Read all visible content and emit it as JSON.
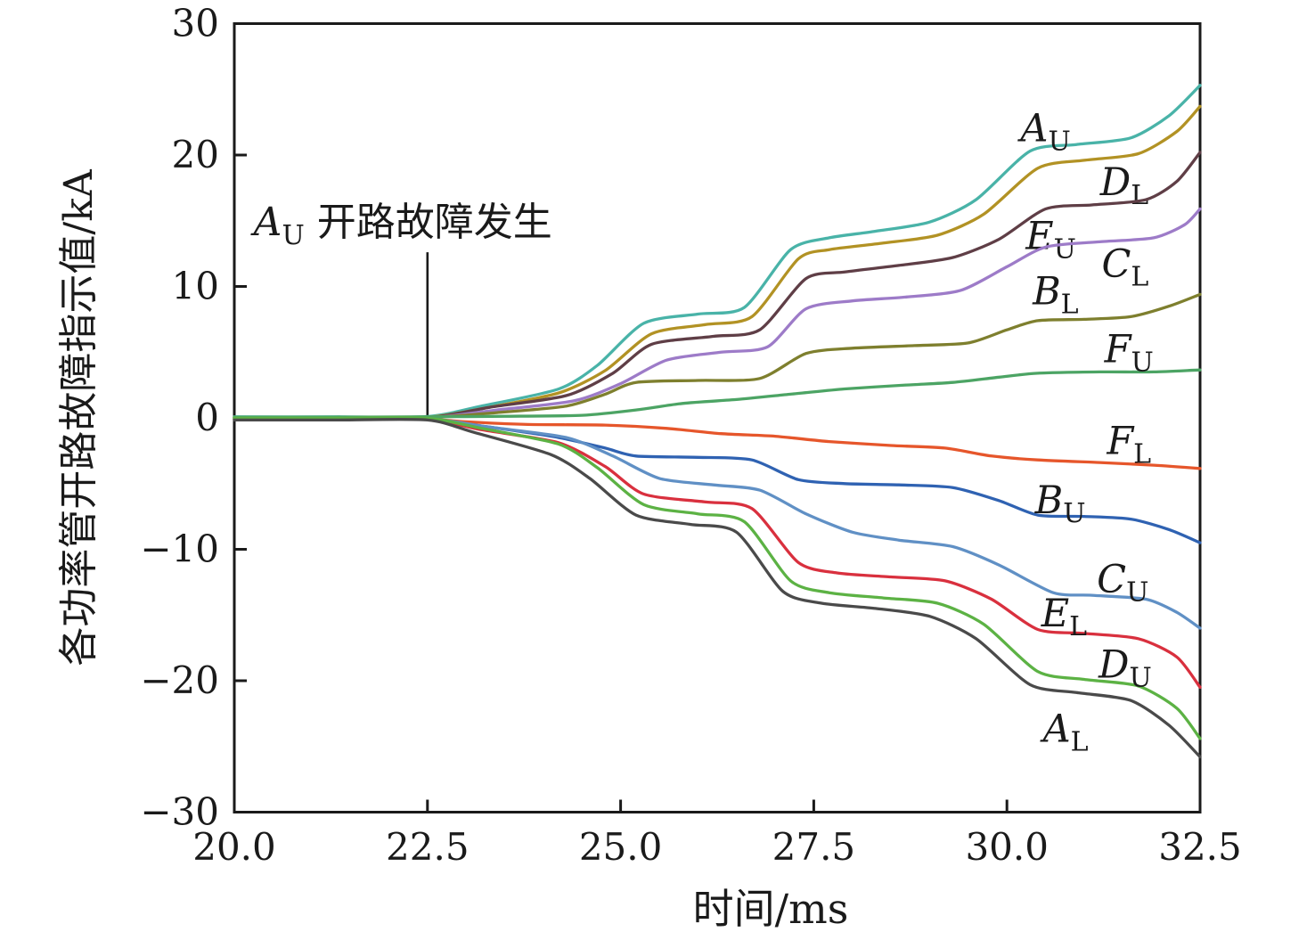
{
  "chart_data": {
    "type": "line",
    "title": "",
    "xlabel": "时间/ms",
    "ylabel": "各功率管开路故障指示值/kA",
    "xlim": [
      20.0,
      32.5
    ],
    "ylim": [
      -30,
      30
    ],
    "grid": false,
    "legend_position": "inline-labels",
    "frame": "box",
    "axis_color": "#1a1a1a",
    "text_color": "#1a1a1a",
    "xticks": {
      "values": [
        20.0,
        22.5,
        25.0,
        27.5,
        30.0,
        32.5
      ],
      "labels": [
        "20.0",
        "22.5",
        "25.0",
        "27.5",
        "30.0",
        "32.5"
      ]
    },
    "yticks": {
      "values": [
        30,
        20,
        10,
        0,
        -10,
        -20,
        -30
      ],
      "labels": [
        "30",
        "20",
        "10",
        "0",
        "−10",
        "−20",
        "−30"
      ]
    },
    "annotation": {
      "letter": "A",
      "letter_sub": "U",
      "rest": " 开路故障发生",
      "text_t": 20.25,
      "text_baseline_v": 13.9,
      "line_t": 22.5,
      "line_v_top": 12.6,
      "line_v_bottom": 0.05
    },
    "series": [
      {
        "name": "A_U",
        "letter": "A",
        "sub": "U",
        "color": "#49b3a8",
        "label_t": 30.5,
        "label_v": 22.0,
        "points": [
          [
            20,
            0.08
          ],
          [
            21.3,
            0.08
          ],
          [
            22.5,
            0.1
          ],
          [
            23.2,
            0.9
          ],
          [
            24.2,
            2.2
          ],
          [
            24.7,
            4.0
          ],
          [
            25.3,
            7.2
          ],
          [
            26.0,
            7.9
          ],
          [
            26.6,
            8.4
          ],
          [
            27.2,
            12.8
          ],
          [
            27.7,
            13.7
          ],
          [
            28.3,
            14.2
          ],
          [
            29.0,
            14.9
          ],
          [
            29.6,
            16.6
          ],
          [
            30.3,
            20.3
          ],
          [
            30.9,
            20.8
          ],
          [
            31.6,
            21.3
          ],
          [
            32.1,
            23.0
          ],
          [
            32.5,
            25.3
          ]
        ]
      },
      {
        "name": "D_L",
        "letter": "D",
        "sub": "L",
        "color": "#b29224",
        "label_t": 31.52,
        "label_v": 17.9,
        "points": [
          [
            20,
            0.04
          ],
          [
            21.3,
            0.04
          ],
          [
            22.5,
            0.05
          ],
          [
            23.2,
            0.7
          ],
          [
            24.2,
            1.9
          ],
          [
            24.8,
            3.6
          ],
          [
            25.4,
            6.4
          ],
          [
            26.1,
            7.1
          ],
          [
            26.7,
            7.7
          ],
          [
            27.3,
            12.1
          ],
          [
            27.7,
            12.8
          ],
          [
            28.4,
            13.3
          ],
          [
            29.1,
            13.9
          ],
          [
            29.7,
            15.5
          ],
          [
            30.4,
            19.0
          ],
          [
            31.0,
            19.6
          ],
          [
            31.7,
            20.1
          ],
          [
            32.2,
            21.8
          ],
          [
            32.5,
            23.7
          ]
        ]
      },
      {
        "name": "E_U",
        "letter": "E",
        "sub": "U",
        "color": "#5f3e46",
        "label_t": 30.57,
        "label_v": 13.8,
        "points": [
          [
            20,
            0.0
          ],
          [
            21.3,
            0.0
          ],
          [
            22.5,
            0.0
          ],
          [
            23.3,
            0.8
          ],
          [
            24.3,
            1.7
          ],
          [
            24.9,
            3.4
          ],
          [
            25.4,
            5.6
          ],
          [
            26.2,
            6.2
          ],
          [
            26.8,
            6.7
          ],
          [
            27.4,
            10.6
          ],
          [
            27.9,
            11.1
          ],
          [
            28.6,
            11.6
          ],
          [
            29.3,
            12.2
          ],
          [
            29.9,
            13.6
          ],
          [
            30.5,
            15.9
          ],
          [
            31.1,
            16.2
          ],
          [
            31.8,
            16.6
          ],
          [
            32.2,
            18.0
          ],
          [
            32.5,
            20.2
          ]
        ]
      },
      {
        "name": "C_L",
        "letter": "C",
        "sub": "L",
        "color": "#9d7bc8",
        "label_t": 31.53,
        "label_v": 11.7,
        "points": [
          [
            20,
            -0.04
          ],
          [
            21.3,
            -0.04
          ],
          [
            22.5,
            0.0
          ],
          [
            23.4,
            0.6
          ],
          [
            24.4,
            1.3
          ],
          [
            25.0,
            2.6
          ],
          [
            25.6,
            4.4
          ],
          [
            26.3,
            5.0
          ],
          [
            26.9,
            5.4
          ],
          [
            27.4,
            8.3
          ],
          [
            28.0,
            8.9
          ],
          [
            28.7,
            9.2
          ],
          [
            29.4,
            9.7
          ],
          [
            30.0,
            11.5
          ],
          [
            30.5,
            13.0
          ],
          [
            31.2,
            13.4
          ],
          [
            31.9,
            13.7
          ],
          [
            32.3,
            14.7
          ],
          [
            32.5,
            15.9
          ]
        ]
      },
      {
        "name": "B_L",
        "letter": "B",
        "sub": "L",
        "color": "#7e7f2e",
        "label_t": 30.63,
        "label_v": 9.6,
        "points": [
          [
            20,
            0.02
          ],
          [
            21.3,
            0.02
          ],
          [
            22.5,
            0.03
          ],
          [
            23.4,
            0.4
          ],
          [
            24.3,
            0.9
          ],
          [
            24.8,
            1.8
          ],
          [
            25.2,
            2.7
          ],
          [
            26.0,
            2.85
          ],
          [
            26.8,
            3.0
          ],
          [
            27.4,
            4.9
          ],
          [
            28.0,
            5.3
          ],
          [
            28.8,
            5.5
          ],
          [
            29.5,
            5.7
          ],
          [
            30.0,
            6.7
          ],
          [
            30.4,
            7.4
          ],
          [
            31.0,
            7.5
          ],
          [
            31.6,
            7.7
          ],
          [
            32.1,
            8.5
          ],
          [
            32.5,
            9.4
          ]
        ]
      },
      {
        "name": "F_U",
        "letter": "F",
        "sub": "U",
        "color": "#4ca464",
        "label_t": 31.58,
        "label_v": 5.2,
        "points": [
          [
            20,
            0.06
          ],
          [
            21.3,
            0.06
          ],
          [
            22.5,
            0.08
          ],
          [
            23.5,
            0.12
          ],
          [
            24.5,
            0.2
          ],
          [
            25.2,
            0.6
          ],
          [
            25.8,
            1.1
          ],
          [
            26.5,
            1.4
          ],
          [
            27.2,
            1.8
          ],
          [
            27.9,
            2.2
          ],
          [
            28.7,
            2.5
          ],
          [
            29.3,
            2.7
          ],
          [
            29.9,
            3.1
          ],
          [
            30.4,
            3.4
          ],
          [
            31.2,
            3.5
          ],
          [
            31.9,
            3.5
          ],
          [
            32.5,
            3.65
          ]
        ]
      },
      {
        "name": "F_L",
        "letter": "F",
        "sub": "L",
        "color": "#e6562b",
        "label_t": 31.58,
        "label_v": -1.8,
        "points": [
          [
            20,
            -0.08
          ],
          [
            21.3,
            -0.08
          ],
          [
            22.5,
            -0.1
          ],
          [
            23.0,
            -0.3
          ],
          [
            23.8,
            -0.5
          ],
          [
            24.8,
            -0.55
          ],
          [
            25.6,
            -0.8
          ],
          [
            26.3,
            -1.2
          ],
          [
            27.0,
            -1.4
          ],
          [
            27.7,
            -1.8
          ],
          [
            28.5,
            -2.1
          ],
          [
            29.2,
            -2.3
          ],
          [
            29.8,
            -2.9
          ],
          [
            30.4,
            -3.2
          ],
          [
            31.2,
            -3.4
          ],
          [
            31.9,
            -3.6
          ],
          [
            32.5,
            -3.85
          ]
        ]
      },
      {
        "name": "B_U",
        "letter": "B",
        "sub": "U",
        "color": "#2f62b2",
        "label_t": 30.69,
        "label_v": -6.3,
        "points": [
          [
            20,
            -0.12
          ],
          [
            21.3,
            -0.12
          ],
          [
            22.5,
            -0.12
          ],
          [
            23.3,
            -0.7
          ],
          [
            24.2,
            -1.5
          ],
          [
            24.8,
            -2.3
          ],
          [
            25.2,
            -2.9
          ],
          [
            26.0,
            -3.0
          ],
          [
            26.7,
            -3.2
          ],
          [
            27.3,
            -4.7
          ],
          [
            27.9,
            -5.0
          ],
          [
            28.6,
            -5.1
          ],
          [
            29.3,
            -5.3
          ],
          [
            29.9,
            -6.3
          ],
          [
            30.4,
            -7.4
          ],
          [
            31.0,
            -7.5
          ],
          [
            31.6,
            -7.7
          ],
          [
            32.1,
            -8.5
          ],
          [
            32.5,
            -9.5
          ]
        ]
      },
      {
        "name": "C_U",
        "letter": "C",
        "sub": "U",
        "color": "#6090c5",
        "label_t": 31.5,
        "label_v": -12.3,
        "points": [
          [
            20,
            -0.06
          ],
          [
            21.3,
            -0.06
          ],
          [
            22.5,
            -0.06
          ],
          [
            23.3,
            -0.7
          ],
          [
            24.3,
            -1.5
          ],
          [
            24.9,
            -2.9
          ],
          [
            25.5,
            -4.6
          ],
          [
            26.2,
            -5.1
          ],
          [
            26.8,
            -5.5
          ],
          [
            27.4,
            -7.3
          ],
          [
            28.0,
            -8.7
          ],
          [
            28.6,
            -9.3
          ],
          [
            29.3,
            -9.8
          ],
          [
            29.9,
            -11.2
          ],
          [
            30.6,
            -13.3
          ],
          [
            31.1,
            -13.5
          ],
          [
            31.8,
            -13.8
          ],
          [
            32.2,
            -14.8
          ],
          [
            32.5,
            -16.0
          ]
        ]
      },
      {
        "name": "E_L",
        "letter": "E",
        "sub": "L",
        "color": "#d9303e",
        "label_t": 30.74,
        "label_v": -14.9,
        "points": [
          [
            20,
            -0.1
          ],
          [
            21.3,
            -0.1
          ],
          [
            22.5,
            -0.1
          ],
          [
            23.2,
            -0.9
          ],
          [
            24.2,
            -1.9
          ],
          [
            24.8,
            -3.7
          ],
          [
            25.3,
            -5.8
          ],
          [
            26.1,
            -6.4
          ],
          [
            26.7,
            -6.9
          ],
          [
            27.3,
            -11.0
          ],
          [
            27.8,
            -11.8
          ],
          [
            28.5,
            -12.1
          ],
          [
            29.2,
            -12.4
          ],
          [
            29.8,
            -13.8
          ],
          [
            30.4,
            -16.1
          ],
          [
            31.0,
            -16.4
          ],
          [
            31.7,
            -16.8
          ],
          [
            32.2,
            -18.2
          ],
          [
            32.5,
            -20.5
          ]
        ]
      },
      {
        "name": "D_U",
        "letter": "D",
        "sub": "U",
        "color": "#5cb244",
        "label_t": 31.53,
        "label_v": -18.8,
        "points": [
          [
            20,
            -0.02
          ],
          [
            21.3,
            -0.02
          ],
          [
            22.5,
            -0.03
          ],
          [
            23.2,
            -0.8
          ],
          [
            24.2,
            -2.0
          ],
          [
            24.7,
            -3.8
          ],
          [
            25.3,
            -6.6
          ],
          [
            26.0,
            -7.3
          ],
          [
            26.6,
            -7.9
          ],
          [
            27.2,
            -12.4
          ],
          [
            27.7,
            -13.3
          ],
          [
            28.4,
            -13.7
          ],
          [
            29.1,
            -14.1
          ],
          [
            29.7,
            -15.7
          ],
          [
            30.4,
            -19.3
          ],
          [
            31.0,
            -19.9
          ],
          [
            31.7,
            -20.4
          ],
          [
            32.2,
            -22.1
          ],
          [
            32.5,
            -24.4
          ]
        ]
      },
      {
        "name": "A_L",
        "letter": "A",
        "sub": "L",
        "color": "#4a4a4a",
        "label_t": 30.76,
        "label_v": -23.7,
        "points": [
          [
            20,
            -0.16
          ],
          [
            21.3,
            -0.16
          ],
          [
            22.5,
            -0.16
          ],
          [
            23.1,
            -1.1
          ],
          [
            24.1,
            -2.8
          ],
          [
            24.6,
            -4.6
          ],
          [
            25.2,
            -7.4
          ],
          [
            25.9,
            -8.1
          ],
          [
            26.5,
            -8.7
          ],
          [
            27.1,
            -13.2
          ],
          [
            27.6,
            -14.1
          ],
          [
            28.3,
            -14.5
          ],
          [
            29.0,
            -15.1
          ],
          [
            29.6,
            -16.8
          ],
          [
            30.3,
            -20.3
          ],
          [
            30.9,
            -20.9
          ],
          [
            31.6,
            -21.5
          ],
          [
            32.1,
            -23.4
          ],
          [
            32.5,
            -25.8
          ]
        ]
      }
    ]
  }
}
